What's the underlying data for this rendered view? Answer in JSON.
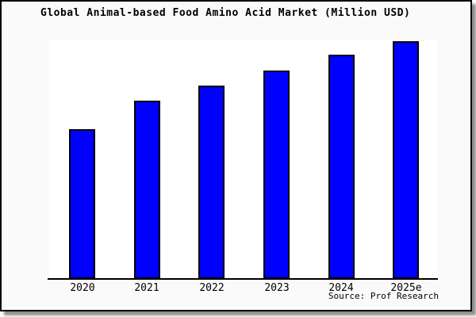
{
  "card": {
    "background": "#fafafa",
    "border_color": "#000000",
    "source_label": "Source: Prof Research"
  },
  "chart_data": {
    "type": "bar",
    "title": "Global Animal-based Food Amino Acid Market (Million USD)",
    "categories": [
      "2020",
      "2021",
      "2022",
      "2023",
      "2024",
      "2025e"
    ],
    "values": [
      63.0,
      75.0,
      81.3,
      87.7,
      94.3,
      100.0
    ],
    "value_scale": "relative height, percent of tallest bar (2025e = 100); chart shows no numeric y-axis",
    "xlabel": "",
    "ylabel": "",
    "ylim": [
      0,
      100.3
    ],
    "gridlines": false,
    "legend": false,
    "y_axis_ticks_visible": false,
    "bar_color": "#0000ff",
    "bar_border_color": "#000000",
    "plot_background": "#ffffff",
    "source": "Source: Prof Research"
  }
}
